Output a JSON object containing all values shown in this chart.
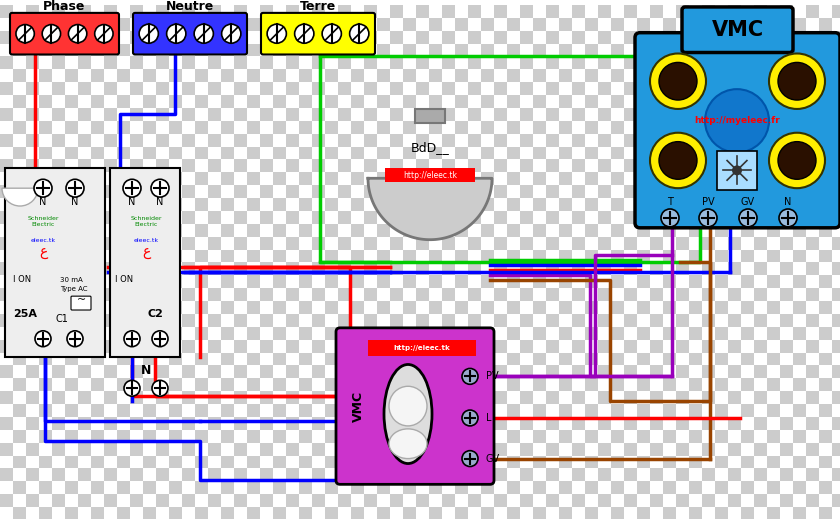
{
  "phase_label": "Phase",
  "neutre_label": "Neutre",
  "terre_label": "Terre",
  "vmc_label": "VMC",
  "bdd_label": "BdD__",
  "website_vmc": "http://myeleec.fr",
  "website_eleec": "http://eleec.tk",
  "phase_color": "#ff0000",
  "neutre_color": "#0000ff",
  "terre_color": "#00cc00",
  "purple_color": "#9900bb",
  "brown_color": "#994400",
  "terminal_phase_bg": "#ff3333",
  "terminal_neutre_bg": "#3333ff",
  "terminal_terre_bg": "#ffff00",
  "vmc_box_bg": "#2299dd",
  "vmc_switch_bg": "#cc33cc",
  "tile_dark": "#cccccc",
  "tile_light": "#ffffff",
  "tile_size": 13,
  "lw": 2.5,
  "breaker_bg": "#eeeeee",
  "bdd_outer": "#999999",
  "bdd_inner": "#cccccc"
}
